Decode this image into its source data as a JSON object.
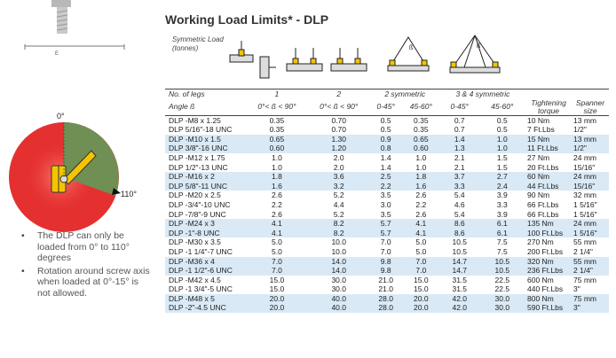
{
  "title": "Working Load Limits* - DLP",
  "symmetric_load": [
    "Symmetric Load",
    "(tonnes)"
  ],
  "diagram": {
    "angle_0": "0°",
    "angle_110": "110°",
    "dim_letter": "E"
  },
  "notes": [
    "The DLP can only be loaded from 0° to 110° degrees",
    "Rotation around screw axis when loaded at 0°-15° is not allowed."
  ],
  "colors": {
    "red": "#e53030",
    "green": "#6f8f55",
    "yellow": "#f5c400",
    "shade": "#d9e9f5"
  },
  "header1": [
    "No. of legs",
    "1",
    "2",
    "2 symmetric",
    "3 & 4 symmetric",
    "",
    ""
  ],
  "header2": [
    "Angle ß",
    "0°< ß < 90°",
    "0°< ß < 90°",
    "0-45°",
    "45-60°",
    "0-45°",
    "45-60°",
    "Tightening torque",
    "Spanner size"
  ],
  "rows": [
    [
      "DLP -M8 x 1.25",
      "0.35",
      "0.70",
      "0.5",
      "0.35",
      "0.7",
      "0.5",
      "10 Nm",
      "13 mm"
    ],
    [
      "DLP 5/16\"-18 UNC",
      "0.35",
      "0.70",
      "0.5",
      "0.35",
      "0.7",
      "0.5",
      "7 Ft.Lbs",
      "1/2\""
    ],
    [
      "DLP -M10 x 1.5",
      "0.65",
      "1.30",
      "0.9",
      "0.65",
      "1.4",
      "1.0",
      "15 Nm",
      "13 mm"
    ],
    [
      "DLP 3/8\"-16 UNC",
      "0.60",
      "1.20",
      "0.8",
      "0.60",
      "1.3",
      "1.0",
      "11 Ft.Lbs",
      "1/2\""
    ],
    [
      "DLP -M12 x 1.75",
      "1.0",
      "2.0",
      "1.4",
      "1.0",
      "2.1",
      "1.5",
      "27 Nm",
      "24 mm"
    ],
    [
      "DLP 1/2\"-13 UNC",
      "1.0",
      "2.0",
      "1.4",
      "1.0",
      "2.1",
      "1.5",
      "20 Ft.Lbs",
      "15/16\""
    ],
    [
      "DLP -M16 x 2",
      "1.8",
      "3.6",
      "2.5",
      "1.8",
      "3.7",
      "2.7",
      "60 Nm",
      "24 mm"
    ],
    [
      "DLP 5/8\"-11 UNC",
      "1.6",
      "3.2",
      "2.2",
      "1.6",
      "3.3",
      "2.4",
      "44 Ft.Lbs",
      "15/16\""
    ],
    [
      "DLP -M20 x 2.5",
      "2.6",
      "5.2",
      "3.5",
      "2.6",
      "5.4",
      "3.9",
      "90 Nm",
      "32 mm"
    ],
    [
      "DLP -3/4\"-10 UNC",
      "2.2",
      "4.4",
      "3.0",
      "2.2",
      "4.6",
      "3.3",
      "66 Ft.Lbs",
      "1 5/16\""
    ],
    [
      "DLP -7/8\"-9 UNC",
      "2.6",
      "5.2",
      "3.5",
      "2.6",
      "5.4",
      "3.9",
      "66 Ft.Lbs",
      "1 5/16\""
    ],
    [
      "DLP -M24 x 3",
      "4.1",
      "8.2",
      "5.7",
      "4.1",
      "8.6",
      "6.1",
      "135 Nm",
      "24 mm"
    ],
    [
      "DLP -1\"-8 UNC",
      "4.1",
      "8.2",
      "5.7",
      "4.1",
      "8.6",
      "6.1",
      "100 Ft.Lbs",
      "1 5/16\""
    ],
    [
      "DLP -M30 x 3.5",
      "5.0",
      "10.0",
      "7.0",
      "5.0",
      "10.5",
      "7.5",
      "270 Nm",
      "55 mm"
    ],
    [
      "DLP -1 1/4\"-7 UNC",
      "5.0",
      "10.0",
      "7.0",
      "5.0",
      "10.5",
      "7.5",
      "200 Ft.Lbs",
      "2 1/4\""
    ],
    [
      "DLP -M36 x 4",
      "7.0",
      "14.0",
      "9.8",
      "7.0",
      "14.7",
      "10.5",
      "320 Nm",
      "55 mm"
    ],
    [
      "DLP -1 1/2\"-6 UNC",
      "7.0",
      "14.0",
      "9.8",
      "7.0",
      "14.7",
      "10.5",
      "236 Ft.Lbs",
      "2 1/4\""
    ],
    [
      "DLP -M42 x 4.5",
      "15.0",
      "30.0",
      "21.0",
      "15.0",
      "31.5",
      "22.5",
      "600 Nm",
      "75 mm"
    ],
    [
      "DLP -1 3/4\"-5 UNC",
      "15.0",
      "30.0",
      "21.0",
      "15.0",
      "31.5",
      "22.5",
      "440 Ft.Lbs",
      "3\""
    ],
    [
      "DLP -M48 x 5",
      "20.0",
      "40.0",
      "28.0",
      "20.0",
      "42.0",
      "30.0",
      "800 Nm",
      "75 mm"
    ],
    [
      "DLP -2\"-4.5 UNC",
      "20.0",
      "40.0",
      "28.0",
      "20.0",
      "42.0",
      "30.0",
      "590 Ft.Lbs",
      "3\""
    ]
  ]
}
